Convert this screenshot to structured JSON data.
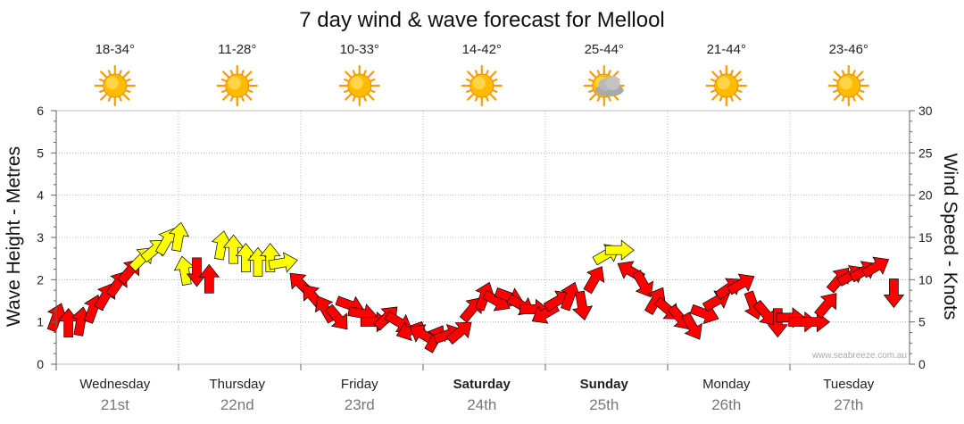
{
  "title": "7 day wind & wave forecast for Mellool",
  "left_axis_label": "Wave Height - Metres",
  "right_axis_label": "Wind Speed - Knots",
  "credit": "www.seabreeze.com.au",
  "days": [
    {
      "name": "Wednesday",
      "date": "21st",
      "temp": "18-34°",
      "icon": "sun-icon",
      "weekend": false
    },
    {
      "name": "Thursday",
      "date": "22nd",
      "temp": "11-28°",
      "icon": "sun-icon",
      "weekend": false
    },
    {
      "name": "Friday",
      "date": "23rd",
      "temp": "10-33°",
      "icon": "sun-icon",
      "weekend": false
    },
    {
      "name": "Saturday",
      "date": "24th",
      "temp": "14-42°",
      "icon": "sun-icon",
      "weekend": true
    },
    {
      "name": "Sunday",
      "date": "25th",
      "temp": "25-44°",
      "icon": "partly-cloudy-icon",
      "weekend": true
    },
    {
      "name": "Monday",
      "date": "26th",
      "temp": "21-44°",
      "icon": "sun-icon",
      "weekend": false
    },
    {
      "name": "Tuesday",
      "date": "27th",
      "temp": "23-46°",
      "icon": "sun-icon",
      "weekend": false
    }
  ],
  "colors": {
    "arrow_red": "#ff0000",
    "arrow_yellow": "#ffff00",
    "sun": "#ffbb00",
    "grid": "#c8c8c8"
  },
  "chart_data": {
    "type": "scatter",
    "title": "7 day wind & wave forecast for Mellool",
    "x_unit": "days from start of Wednesday",
    "xlim": [
      0,
      6.9
    ],
    "y_left": {
      "label": "Wave Height - Metres",
      "lim": [
        0,
        6
      ],
      "ticks": [
        0,
        1,
        2,
        3,
        4,
        5,
        6
      ]
    },
    "y_right": {
      "label": "Wind Speed - Knots",
      "lim": [
        0,
        30
      ],
      "ticks": [
        0,
        5,
        10,
        15,
        20,
        25,
        30
      ]
    },
    "grid": true,
    "series": [
      {
        "name": "Wind (arrow position = wind speed in knots, arrow direction = wind bearing, colour = strength band)",
        "points": [
          {
            "x": 0.0,
            "knots": 5.5,
            "dir": 20,
            "band": "red"
          },
          {
            "x": 0.1,
            "knots": 4.8,
            "dir": 0,
            "band": "red"
          },
          {
            "x": 0.2,
            "knots": 5.0,
            "dir": 10,
            "band": "red"
          },
          {
            "x": 0.3,
            "knots": 6.5,
            "dir": 20,
            "band": "red"
          },
          {
            "x": 0.4,
            "knots": 8.0,
            "dir": 30,
            "band": "red"
          },
          {
            "x": 0.5,
            "knots": 9.5,
            "dir": 35,
            "band": "red"
          },
          {
            "x": 0.6,
            "knots": 11.0,
            "dir": 40,
            "band": "red"
          },
          {
            "x": 0.7,
            "knots": 12.5,
            "dir": 45,
            "band": "yellow"
          },
          {
            "x": 0.8,
            "knots": 13.5,
            "dir": 50,
            "band": "yellow"
          },
          {
            "x": 0.9,
            "knots": 14.5,
            "dir": 30,
            "band": "yellow"
          },
          {
            "x": 1.0,
            "knots": 15.0,
            "dir": 10,
            "band": "yellow"
          },
          {
            "x": 1.05,
            "knots": 11.0,
            "dir": 350,
            "band": "yellow"
          },
          {
            "x": 1.15,
            "knots": 11.0,
            "dir": 180,
            "band": "red"
          },
          {
            "x": 1.25,
            "knots": 10.0,
            "dir": 0,
            "band": "red"
          },
          {
            "x": 1.35,
            "knots": 14.0,
            "dir": 10,
            "band": "yellow"
          },
          {
            "x": 1.45,
            "knots": 13.5,
            "dir": 0,
            "band": "yellow"
          },
          {
            "x": 1.55,
            "knots": 12.5,
            "dir": 0,
            "band": "yellow"
          },
          {
            "x": 1.65,
            "knots": 12.0,
            "dir": 0,
            "band": "yellow"
          },
          {
            "x": 1.75,
            "knots": 12.5,
            "dir": 0,
            "band": "yellow"
          },
          {
            "x": 1.85,
            "knots": 12.0,
            "dir": 80,
            "band": "yellow"
          },
          {
            "x": 2.0,
            "knots": 9.5,
            "dir": 315,
            "band": "red"
          },
          {
            "x": 2.1,
            "knots": 8.0,
            "dir": 320,
            "band": "red"
          },
          {
            "x": 2.2,
            "knots": 6.5,
            "dir": 330,
            "band": "red"
          },
          {
            "x": 2.3,
            "knots": 5.5,
            "dir": 140,
            "band": "red"
          },
          {
            "x": 2.4,
            "knots": 7.0,
            "dir": 110,
            "band": "red"
          },
          {
            "x": 2.5,
            "knots": 6.0,
            "dir": 100,
            "band": "red"
          },
          {
            "x": 2.6,
            "knots": 5.0,
            "dir": 90,
            "band": "red"
          },
          {
            "x": 2.7,
            "knots": 5.5,
            "dir": 45,
            "band": "red"
          },
          {
            "x": 2.8,
            "knots": 5.0,
            "dir": 120,
            "band": "red"
          },
          {
            "x": 2.9,
            "knots": 4.0,
            "dir": 250,
            "band": "red"
          },
          {
            "x": 3.0,
            "knots": 3.5,
            "dir": 300,
            "band": "red"
          },
          {
            "x": 3.1,
            "knots": 3.0,
            "dir": 30,
            "band": "red"
          },
          {
            "x": 3.2,
            "knots": 3.5,
            "dir": 70,
            "band": "red"
          },
          {
            "x": 3.3,
            "knots": 3.8,
            "dir": 50,
            "band": "red"
          },
          {
            "x": 3.4,
            "knots": 6.5,
            "dir": 40,
            "band": "red"
          },
          {
            "x": 3.5,
            "knots": 8.0,
            "dir": 20,
            "band": "red"
          },
          {
            "x": 3.6,
            "knots": 7.5,
            "dir": 120,
            "band": "red"
          },
          {
            "x": 3.7,
            "knots": 8.0,
            "dir": 110,
            "band": "red"
          },
          {
            "x": 3.8,
            "knots": 7.0,
            "dir": 120,
            "band": "red"
          },
          {
            "x": 3.9,
            "knots": 6.5,
            "dir": 90,
            "band": "red"
          },
          {
            "x": 4.0,
            "knots": 6.0,
            "dir": 240,
            "band": "red"
          },
          {
            "x": 4.1,
            "knots": 7.5,
            "dir": 60,
            "band": "red"
          },
          {
            "x": 4.2,
            "knots": 8.0,
            "dir": 20,
            "band": "red"
          },
          {
            "x": 4.3,
            "knots": 7.0,
            "dir": 170,
            "band": "red"
          },
          {
            "x": 4.4,
            "knots": 10.0,
            "dir": 30,
            "band": "red"
          },
          {
            "x": 4.5,
            "knots": 13.0,
            "dir": 60,
            "band": "yellow"
          },
          {
            "x": 4.6,
            "knots": 13.5,
            "dir": 90,
            "band": "yellow"
          },
          {
            "x": 4.7,
            "knots": 11.0,
            "dir": 300,
            "band": "red"
          },
          {
            "x": 4.8,
            "knots": 9.5,
            "dir": 150,
            "band": "red"
          },
          {
            "x": 4.9,
            "knots": 7.5,
            "dir": 30,
            "band": "red"
          },
          {
            "x": 5.0,
            "knots": 6.5,
            "dir": 130,
            "band": "red"
          },
          {
            "x": 5.1,
            "knots": 5.5,
            "dir": 140,
            "band": "red"
          },
          {
            "x": 5.2,
            "knots": 4.5,
            "dir": 150,
            "band": "red"
          },
          {
            "x": 5.3,
            "knots": 6.0,
            "dir": 110,
            "band": "red"
          },
          {
            "x": 5.4,
            "knots": 7.5,
            "dir": 60,
            "band": "red"
          },
          {
            "x": 5.5,
            "knots": 9.0,
            "dir": 55,
            "band": "red"
          },
          {
            "x": 5.6,
            "knots": 9.5,
            "dir": 60,
            "band": "red"
          },
          {
            "x": 5.7,
            "knots": 7.0,
            "dir": 160,
            "band": "red"
          },
          {
            "x": 5.8,
            "knots": 6.0,
            "dir": 140,
            "band": "red"
          },
          {
            "x": 5.9,
            "knots": 5.0,
            "dir": 180,
            "band": "red"
          },
          {
            "x": 6.0,
            "knots": 5.5,
            "dir": 90,
            "band": "red"
          },
          {
            "x": 6.1,
            "knots": 5.0,
            "dir": 90,
            "band": "red"
          },
          {
            "x": 6.2,
            "knots": 5.0,
            "dir": 90,
            "band": "red"
          },
          {
            "x": 6.3,
            "knots": 7.0,
            "dir": 40,
            "band": "red"
          },
          {
            "x": 6.4,
            "knots": 10.0,
            "dir": 40,
            "band": "red"
          },
          {
            "x": 6.5,
            "knots": 10.5,
            "dir": 60,
            "band": "red"
          },
          {
            "x": 6.6,
            "knots": 11.0,
            "dir": 60,
            "band": "red"
          },
          {
            "x": 6.7,
            "knots": 11.5,
            "dir": 60,
            "band": "red"
          },
          {
            "x": 6.85,
            "knots": 8.5,
            "dir": 180,
            "band": "red"
          }
        ]
      }
    ]
  }
}
